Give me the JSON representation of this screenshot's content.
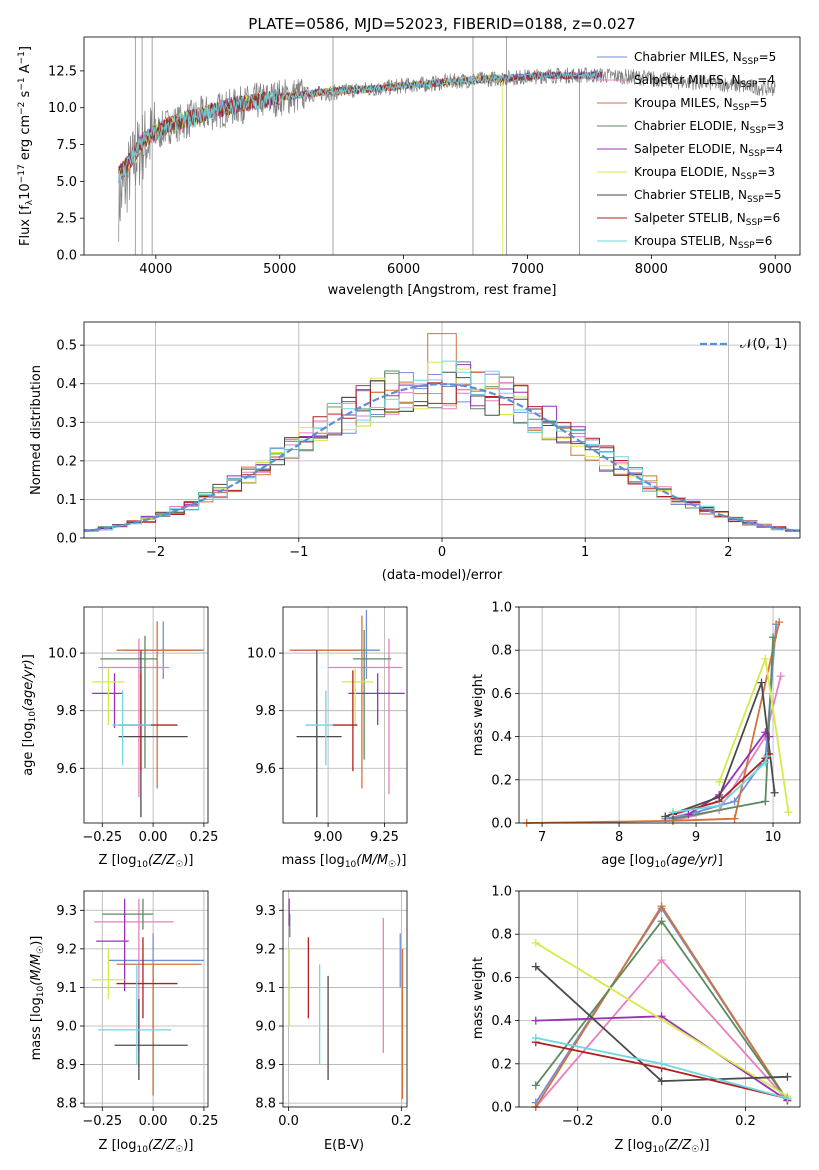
{
  "figure": {
    "title": "PLATE=0586, MJD=52023, FIBERID=0188, z=0.027"
  },
  "colors": {
    "Chabrier MILES": "#6f8fd8",
    "Salpeter MILES": "#e87fbf",
    "Kroupa MILES": "#d2743a",
    "Chabrier ELODIE": "#5e8a62",
    "Salpeter ELODIE": "#9b30b8",
    "Kroupa ELODIE": "#d6ea4a",
    "Chabrier STELIB": "#4a4a4a",
    "Salpeter STELIB": "#b0201f",
    "Kroupa STELIB": "#6fd6e2"
  },
  "chart_data": [
    {
      "id": "spectrum",
      "type": "line",
      "title": "PLATE=0586, MJD=52023, FIBERID=0188, z=0.027",
      "xlabel": "wavelength [Angstrom, rest frame]",
      "ylabel": "Flux [f_λ 10^-17 erg cm^-2 s^-1 A^-1]",
      "xlim": [
        3420,
        9200
      ],
      "ylim": [
        0,
        14.8
      ],
      "xticks": [
        4000,
        5000,
        6000,
        7000,
        8000,
        9000
      ],
      "yticks": [
        0.0,
        2.5,
        5.0,
        7.5,
        10.0,
        12.5
      ],
      "grid": false,
      "legend_position": "top-right",
      "legend": [
        "Chabrier MILES, N_SSP=5",
        "Salpeter MILES, N_SSP=4",
        "Kroupa MILES, N_SSP=5",
        "Chabrier ELODIE, N_SSP=3",
        "Salpeter ELODIE, N_SSP=4",
        "Kroupa ELODIE, N_SSP=3",
        "Chabrier STELIB, N_SSP=5",
        "Salpeter STELIB, N_SSP=6",
        "Kroupa STELIB, N_SSP=6"
      ],
      "observed_continuum": {
        "x": [
          3700,
          3800,
          3900,
          4000,
          4100,
          4200,
          4400,
          4600,
          4800,
          5000,
          5200,
          5400,
          5600,
          5800,
          6000,
          6200,
          6400,
          6600,
          6800,
          7000,
          7200,
          7400,
          7600,
          7800,
          8000,
          8200,
          8400,
          8600,
          8800,
          9000
        ],
        "y": [
          3.5,
          6.0,
          7.5,
          8.2,
          8.8,
          9.0,
          9.6,
          10.0,
          10.4,
          10.7,
          10.9,
          11.0,
          11.2,
          11.3,
          11.5,
          11.6,
          11.8,
          11.9,
          12.0,
          12.1,
          12.2,
          12.2,
          12.2,
          12.1,
          12.0,
          11.8,
          11.7,
          11.6,
          11.4,
          11.3
        ]
      },
      "model_continuum": {
        "x": [
          3700,
          3800,
          3900,
          4000,
          4100,
          4200,
          4400,
          4600,
          4800,
          5000,
          5200,
          5400,
          5600,
          5800,
          6000,
          6200,
          6400,
          6600,
          6800,
          7000,
          7200,
          7400,
          7600
        ],
        "y": [
          5.5,
          6.5,
          7.8,
          8.3,
          8.8,
          9.1,
          9.6,
          10.1,
          10.4,
          10.7,
          10.9,
          11.1,
          11.2,
          11.3,
          11.5,
          11.6,
          11.8,
          11.9,
          12.0,
          12.1,
          12.2,
          12.2,
          12.2
        ]
      },
      "truncations": {
        "Kroupa ELODIE": 6800,
        "Kroupa MILES": 7420
      }
    },
    {
      "id": "residuals",
      "type": "bar",
      "xlabel": "(data-model)/error",
      "ylabel": "Normed distribution",
      "xlim": [
        -2.5,
        2.5
      ],
      "ylim": [
        0,
        0.56
      ],
      "xticks": [
        -2,
        -1,
        0,
        1,
        2
      ],
      "xticklabels": [
        "−2",
        "−1",
        "0",
        "1",
        "2"
      ],
      "yticks": [
        0.0,
        0.1,
        0.2,
        0.3,
        0.4,
        0.5
      ],
      "grid": true,
      "bin_width": 0.1,
      "legend_position": "top-right",
      "reference_curve": {
        "label": "N(0,1)",
        "mu": 0,
        "sigma": 1
      }
    },
    {
      "id": "age-vs-Z",
      "type": "scatter",
      "xlabel": "Z [log10(Z/Z☉)]",
      "ylabel": "age  [log10(age/yr)]",
      "xlim": [
        -0.34,
        0.27
      ],
      "ylim": [
        9.41,
        10.16
      ],
      "xticks": [
        -0.25,
        0.0,
        0.25
      ],
      "xticklabels": [
        "−0.25",
        "0.00",
        "0.25"
      ],
      "yticks": [
        9.6,
        9.8,
        10.0
      ],
      "grid": true,
      "points": [
        {
          "model": "Chabrier MILES",
          "x": 0.05,
          "y": 10.01,
          "xerr": [
            0.2,
            0.2
          ],
          "yerr": [
            0.1,
            0.1
          ]
        },
        {
          "model": "Salpeter MILES",
          "x": -0.07,
          "y": 9.95,
          "xerr": [
            0.2,
            0.15
          ],
          "yerr": [
            0.45,
            0.1
          ]
        },
        {
          "model": "Kroupa MILES",
          "x": 0.02,
          "y": 10.01,
          "xerr": [
            0.2,
            0.22
          ],
          "yerr": [
            0.48,
            0.1
          ]
        },
        {
          "model": "Chabrier ELODIE",
          "x": -0.04,
          "y": 9.98,
          "xerr": [
            0.22,
            0.06
          ],
          "yerr": [
            0.38,
            0.08
          ]
        },
        {
          "model": "Salpeter ELODIE",
          "x": -0.19,
          "y": 9.86,
          "xerr": [
            0.11,
            0.04
          ],
          "yerr": [
            0.12,
            0.07
          ]
        },
        {
          "model": "Kroupa ELODIE",
          "x": -0.22,
          "y": 9.9,
          "xerr": [
            0.08,
            0.08
          ],
          "yerr": [
            0.15,
            0.05
          ]
        },
        {
          "model": "Chabrier STELIB",
          "x": -0.06,
          "y": 9.71,
          "xerr": [
            0.11,
            0.23
          ],
          "yerr": [
            0.28,
            0.3
          ]
        },
        {
          "model": "Salpeter STELIB",
          "x": -0.06,
          "y": 9.75,
          "xerr": [
            0.11,
            0.18
          ],
          "yerr": [
            0.16,
            0.18
          ]
        },
        {
          "model": "Kroupa STELIB",
          "x": -0.15,
          "y": 9.75,
          "xerr": [
            0.05,
            0.14
          ],
          "yerr": [
            0.14,
            0.12
          ]
        }
      ]
    },
    {
      "id": "age-vs-mass",
      "type": "scatter",
      "xlabel": "mass [log10(M/M☉)]",
      "ylabel": "",
      "xlim": [
        8.8,
        9.35
      ],
      "ylim": [
        9.41,
        10.16
      ],
      "xticks": [
        9.0,
        9.25
      ],
      "xticklabels": [
        "9.00",
        "9.25"
      ],
      "yticks": [
        9.6,
        9.8,
        10.0
      ],
      "grid": true,
      "points": [
        {
          "model": "Chabrier MILES",
          "x": 9.17,
          "y": 10.01,
          "xerr": [
            0.33,
            0.06
          ],
          "yerr": [
            0.1,
            0.14
          ]
        },
        {
          "model": "Salpeter MILES",
          "x": 9.27,
          "y": 9.95,
          "xerr": [
            0.27,
            0.06
          ],
          "yerr": [
            0.44,
            0.1
          ]
        },
        {
          "model": "Kroupa MILES",
          "x": 9.15,
          "y": 10.01,
          "xerr": [
            0.32,
            0.0
          ],
          "yerr": [
            0.48,
            0.12
          ]
        },
        {
          "model": "Chabrier ELODIE",
          "x": 9.16,
          "y": 9.98,
          "xerr": [
            0.05,
            0.12
          ],
          "yerr": [
            0.35,
            0.1
          ]
        },
        {
          "model": "Salpeter ELODIE",
          "x": 9.22,
          "y": 9.86,
          "xerr": [
            0.13,
            0.12
          ],
          "yerr": [
            0.11,
            0.07
          ]
        },
        {
          "model": "Kroupa ELODIE",
          "x": 9.12,
          "y": 9.9,
          "xerr": [
            0.06,
            0.08
          ],
          "yerr": [
            0.15,
            0.05
          ]
        },
        {
          "model": "Chabrier STELIB",
          "x": 8.95,
          "y": 9.71,
          "xerr": [
            0.09,
            0.11
          ],
          "yerr": [
            0.28,
            0.3
          ]
        },
        {
          "model": "Salpeter STELIB",
          "x": 9.11,
          "y": 9.75,
          "xerr": [
            0.09,
            0.02
          ],
          "yerr": [
            0.16,
            0.19
          ]
        },
        {
          "model": "Kroupa STELIB",
          "x": 8.99,
          "y": 9.75,
          "xerr": [
            0.09,
            0.03
          ],
          "yerr": [
            0.14,
            0.12
          ]
        }
      ]
    },
    {
      "id": "massweight-vs-age",
      "type": "line",
      "xlabel": "age  [log10(age/yr)]",
      "ylabel": "mass weight",
      "xlim": [
        6.7,
        10.35
      ],
      "ylim": [
        0,
        1.0
      ],
      "xticks": [
        7,
        8,
        9,
        10
      ],
      "yticks": [
        0.0,
        0.2,
        0.4,
        0.6,
        0.8,
        1.0
      ],
      "grid": true,
      "series": [
        {
          "name": "Chabrier MILES",
          "x": [
            8.6,
            9.0,
            9.5,
            9.9,
            10.04
          ],
          "y": [
            0.02,
            0.05,
            0.1,
            0.3,
            0.92
          ]
        },
        {
          "name": "Salpeter MILES",
          "x": [
            8.7,
            9.3,
            9.9,
            10.1
          ],
          "y": [
            0.01,
            0.06,
            0.4,
            0.68
          ]
        },
        {
          "name": "Kroupa MILES",
          "x": [
            6.8,
            8.7,
            9.5,
            10.08
          ],
          "y": [
            0.0,
            0.01,
            0.02,
            0.93
          ]
        },
        {
          "name": "Chabrier ELODIE",
          "x": [
            8.7,
            9.9,
            10.0
          ],
          "y": [
            0.02,
            0.1,
            0.86
          ]
        },
        {
          "name": "Salpeter ELODIE",
          "x": [
            8.9,
            9.3,
            9.9,
            9.95
          ],
          "y": [
            0.04,
            0.13,
            0.42,
            0.4
          ]
        },
        {
          "name": "Kroupa ELODIE",
          "x": [
            9.3,
            9.9,
            10.2
          ],
          "y": [
            0.19,
            0.76,
            0.05
          ]
        },
        {
          "name": "Chabrier STELIB",
          "x": [
            8.6,
            9.3,
            9.85,
            10.02
          ],
          "y": [
            0.03,
            0.12,
            0.65,
            0.14
          ]
        },
        {
          "name": "Salpeter STELIB",
          "x": [
            8.7,
            9.3,
            9.9,
            9.95
          ],
          "y": [
            0.04,
            0.1,
            0.3,
            0.32
          ]
        },
        {
          "name": "Kroupa STELIB",
          "x": [
            8.7,
            9.3,
            9.9,
            9.92
          ],
          "y": [
            0.05,
            0.08,
            0.28,
            0.31
          ]
        }
      ]
    },
    {
      "id": "mass-vs-Z",
      "type": "scatter",
      "xlabel": "Z [log10(Z/Z☉)]",
      "ylabel": "mass [log10(M/M☉)]",
      "xlim": [
        -0.34,
        0.27
      ],
      "ylim": [
        8.79,
        9.35
      ],
      "xticks": [
        -0.25,
        0.0,
        0.25
      ],
      "xticklabels": [
        "−0.25",
        "0.00",
        "0.25"
      ],
      "yticks": [
        8.8,
        8.9,
        9.0,
        9.1,
        9.2,
        9.3
      ],
      "grid": true,
      "points": [
        {
          "model": "Chabrier MILES",
          "x": 0.0,
          "y": 9.17,
          "xerr": [
            0.22,
            0.25
          ],
          "yerr": [
            0.35,
            0.07
          ]
        },
        {
          "model": "Salpeter MILES",
          "x": -0.07,
          "y": 9.27,
          "xerr": [
            0.22,
            0.17
          ],
          "yerr": [
            0.34,
            0.06
          ]
        },
        {
          "model": "Kroupa MILES",
          "x": 0.0,
          "y": 9.16,
          "xerr": [
            0.18,
            0.24
          ],
          "yerr": [
            0.34,
            0.0
          ]
        },
        {
          "model": "Chabrier ELODIE",
          "x": -0.05,
          "y": 9.29,
          "xerr": [
            0.2,
            0.05
          ],
          "yerr": [
            0.04,
            0.04
          ]
        },
        {
          "model": "Salpeter ELODIE",
          "x": -0.14,
          "y": 9.22,
          "xerr": [
            0.14,
            0.02
          ],
          "yerr": [
            0.13,
            0.11
          ]
        },
        {
          "model": "Kroupa ELODIE",
          "x": -0.22,
          "y": 9.12,
          "xerr": [
            0.08,
            0.08
          ],
          "yerr": [
            0.05,
            0.08
          ]
        },
        {
          "model": "Chabrier STELIB",
          "x": -0.07,
          "y": 8.95,
          "xerr": [
            0.12,
            0.24
          ],
          "yerr": [
            0.09,
            0.12
          ]
        },
        {
          "model": "Salpeter STELIB",
          "x": -0.05,
          "y": 9.11,
          "xerr": [
            0.13,
            0.17
          ],
          "yerr": [
            0.09,
            0.12
          ]
        },
        {
          "model": "Kroupa STELIB",
          "x": -0.08,
          "y": 8.99,
          "xerr": [
            0.19,
            0.17
          ],
          "yerr": [
            0.09,
            0.17
          ]
        }
      ]
    },
    {
      "id": "mass-vs-EBV",
      "type": "scatter",
      "xlabel": "E(B-V)",
      "ylabel": "",
      "xlim": [
        -0.01,
        0.21
      ],
      "ylim": [
        8.79,
        9.35
      ],
      "xticks": [
        0.0,
        0.2
      ],
      "xticklabels": [
        "0.0",
        "0.2"
      ],
      "yticks": [
        8.8,
        8.9,
        9.0,
        9.1,
        9.2,
        9.3
      ],
      "grid": true,
      "points": [
        {
          "model": "Chabrier MILES",
          "x": 0.198,
          "y": 9.17,
          "yerr": [
            0.07,
            0.07
          ]
        },
        {
          "model": "Salpeter MILES",
          "x": 0.168,
          "y": 9.1,
          "yerr": [
            0.17,
            0.18
          ]
        },
        {
          "model": "Kroupa MILES",
          "x": 0.202,
          "y": 9.0,
          "yerr": [
            0.19,
            0.2
          ]
        },
        {
          "model": "Chabrier ELODIE",
          "x": 0.002,
          "y": 9.26,
          "yerr": [
            0.03,
            0.03
          ]
        },
        {
          "model": "Salpeter ELODIE",
          "x": 0.001,
          "y": 9.29,
          "yerr": [
            0.03,
            0.04
          ]
        },
        {
          "model": "Kroupa ELODIE",
          "x": 0.001,
          "y": 9.1,
          "yerr": [
            0.1,
            0.1
          ]
        },
        {
          "model": "Chabrier STELIB",
          "x": 0.07,
          "y": 9.0,
          "yerr": [
            0.14,
            0.13
          ]
        },
        {
          "model": "Salpeter STELIB",
          "x": 0.035,
          "y": 9.12,
          "yerr": [
            0.1,
            0.11
          ]
        },
        {
          "model": "Kroupa STELIB",
          "x": 0.055,
          "y": 9.03,
          "yerr": [
            0.13,
            0.13
          ]
        }
      ]
    },
    {
      "id": "massweight-vs-Z",
      "type": "line",
      "xlabel": "Z [log10(Z/Z☉)]",
      "ylabel": "mass weight",
      "xlim": [
        -0.34,
        0.33
      ],
      "ylim": [
        0,
        1.0
      ],
      "xticks": [
        -0.2,
        0.0,
        0.2
      ],
      "xticklabels": [
        "−0.2",
        "0.0",
        "0.2"
      ],
      "yticks": [
        0.0,
        0.2,
        0.4,
        0.6,
        0.8,
        1.0
      ],
      "grid": true,
      "series": [
        {
          "name": "Chabrier MILES",
          "x": [
            -0.3,
            0.0,
            0.3
          ],
          "y": [
            0.02,
            0.92,
            0.03
          ]
        },
        {
          "name": "Salpeter MILES",
          "x": [
            -0.3,
            0.0,
            0.3
          ],
          "y": [
            0.0,
            0.68,
            0.03
          ]
        },
        {
          "name": "Kroupa MILES",
          "x": [
            -0.3,
            0.0,
            0.3
          ],
          "y": [
            0.0,
            0.93,
            0.03
          ]
        },
        {
          "name": "Chabrier ELODIE",
          "x": [
            -0.3,
            0.0,
            0.3
          ],
          "y": [
            0.1,
            0.86,
            0.03
          ]
        },
        {
          "name": "Salpeter ELODIE",
          "x": [
            -0.3,
            0.0,
            0.3
          ],
          "y": [
            0.4,
            0.42,
            0.03
          ]
        },
        {
          "name": "Kroupa ELODIE",
          "x": [
            -0.3,
            0.3
          ],
          "y": [
            0.76,
            0.05
          ]
        },
        {
          "name": "Chabrier STELIB",
          "x": [
            -0.3,
            0.0,
            0.3
          ],
          "y": [
            0.65,
            0.12,
            0.14
          ]
        },
        {
          "name": "Salpeter STELIB",
          "x": [
            -0.3,
            0.0,
            0.3
          ],
          "y": [
            0.3,
            0.18,
            0.04
          ]
        },
        {
          "name": "Kroupa STELIB",
          "x": [
            -0.3,
            0.0,
            0.3
          ],
          "y": [
            0.32,
            0.2,
            0.04
          ]
        }
      ]
    }
  ]
}
